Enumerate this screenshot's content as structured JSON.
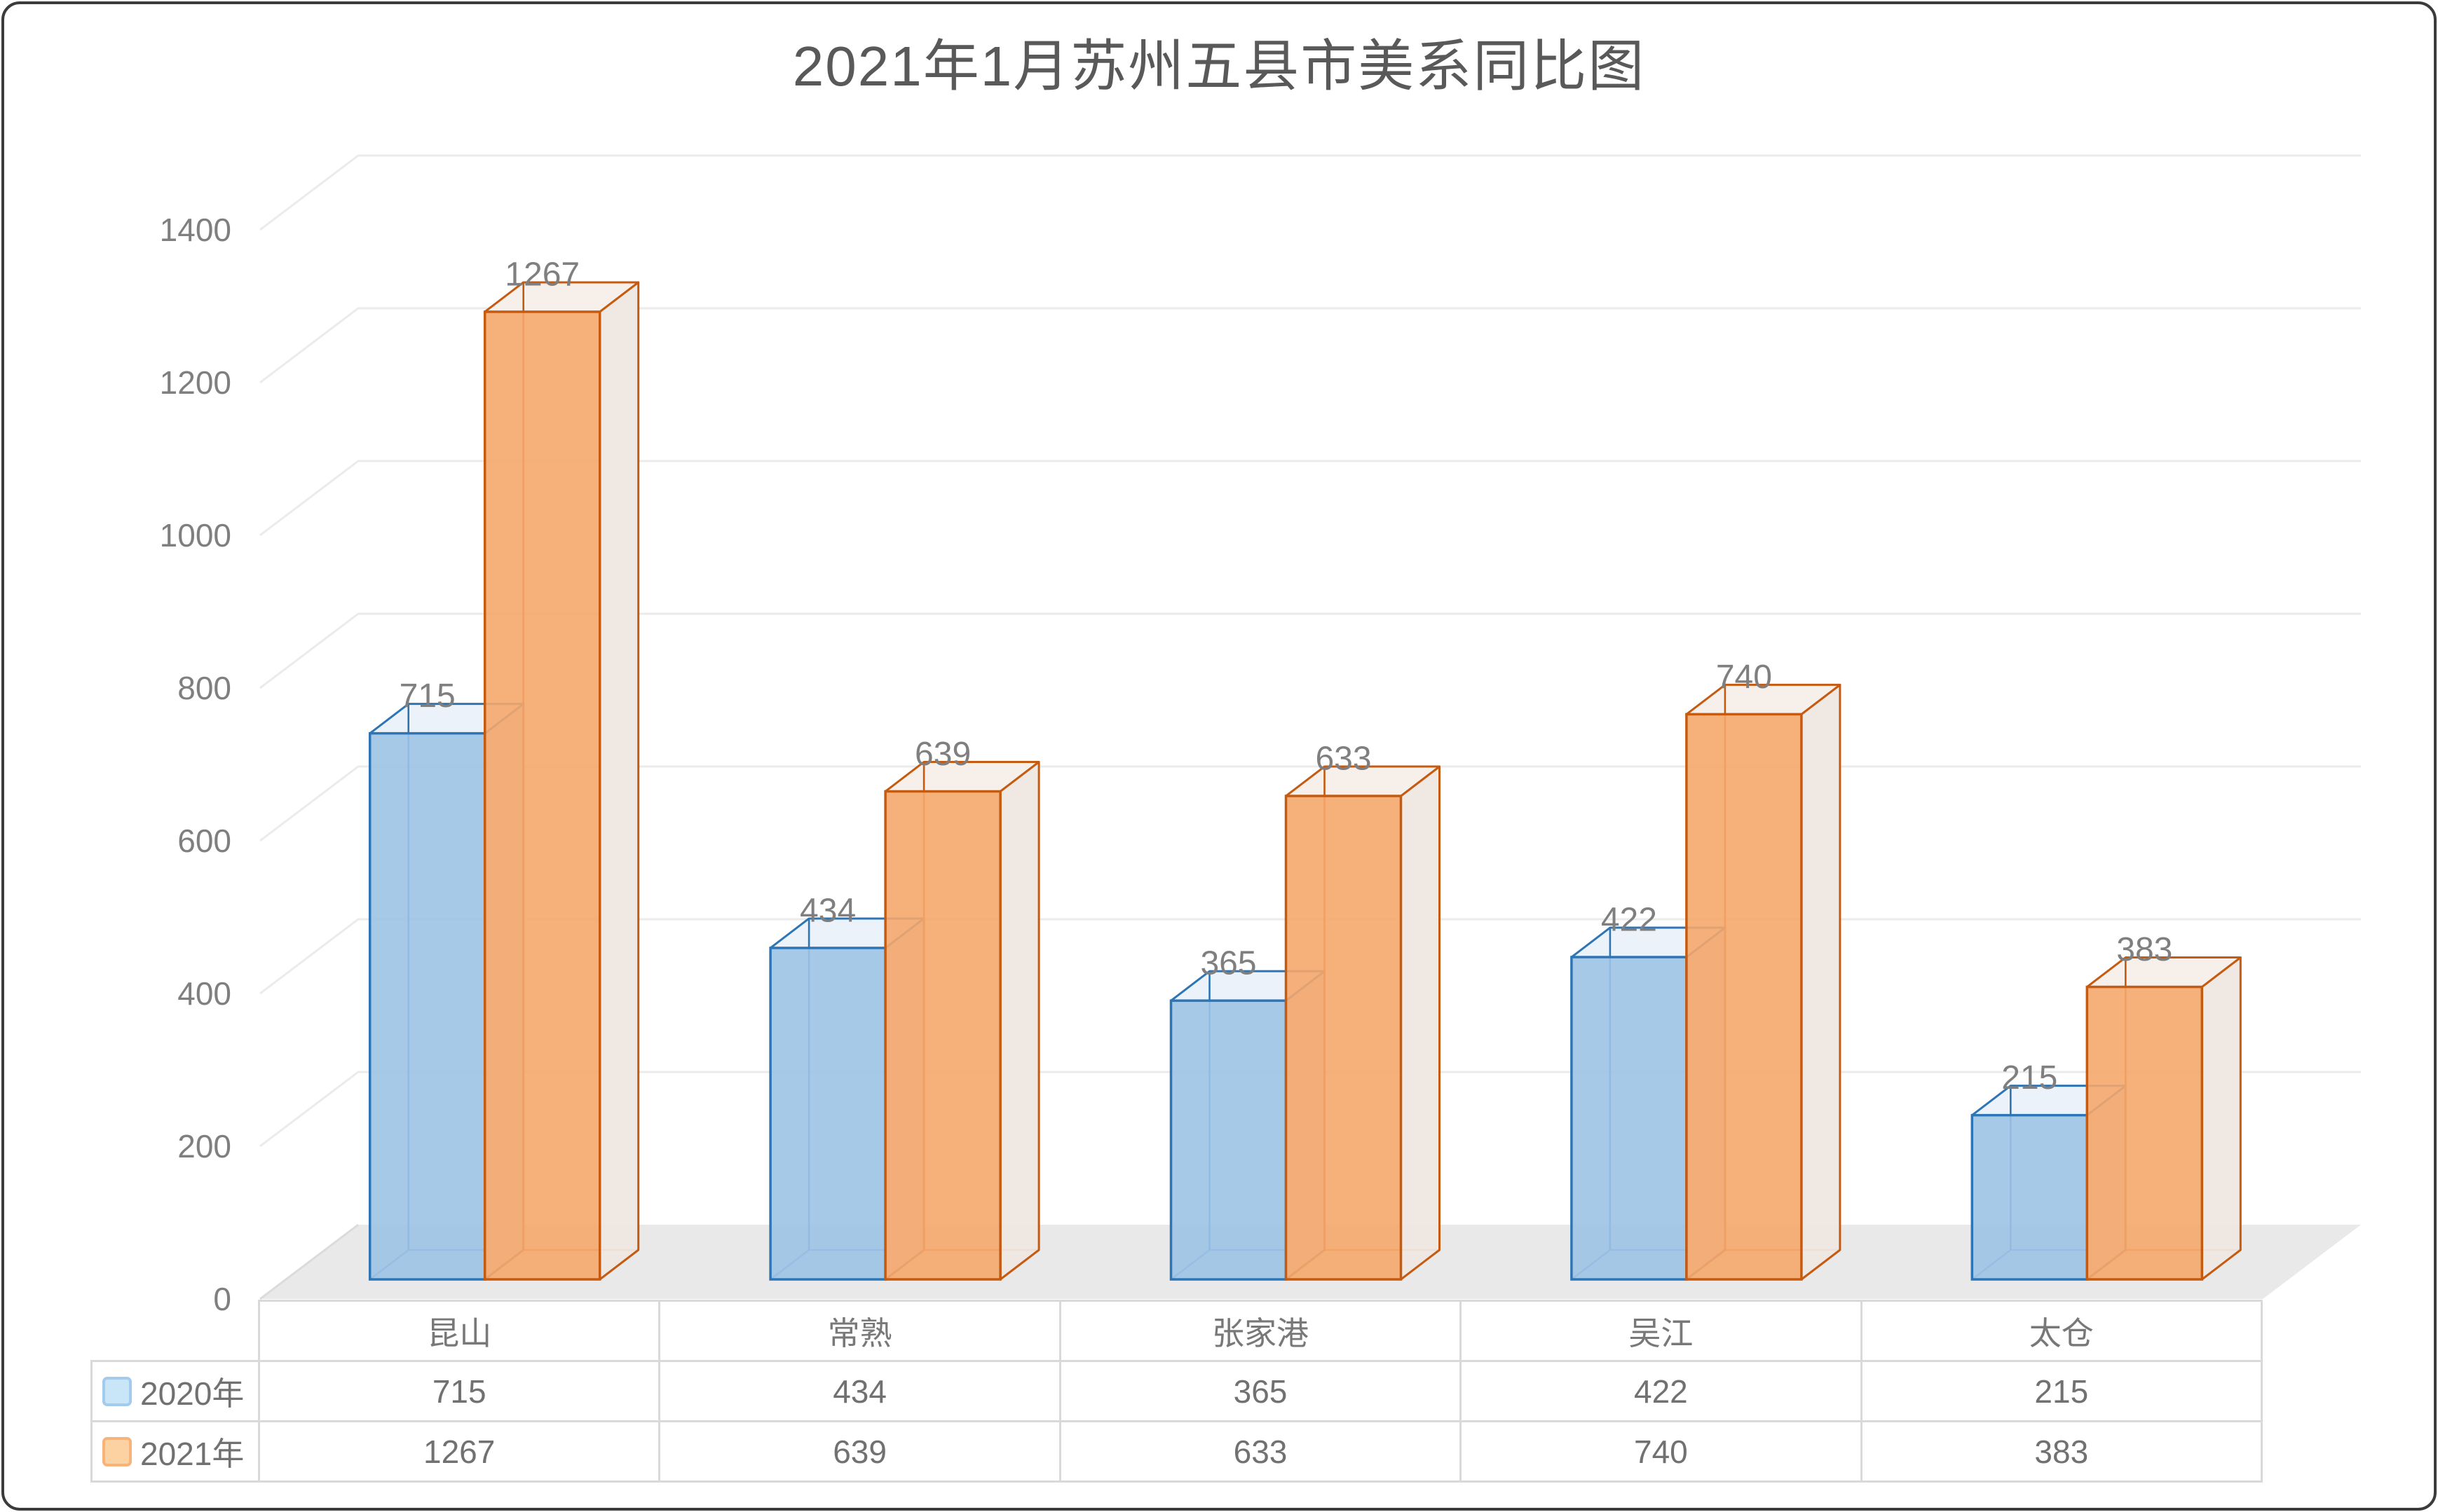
{
  "window": {
    "background": "#FFFFFF",
    "frame_border_color": "#3B3B3B"
  },
  "title": {
    "text": "2021年1月苏州五县市美系同比图",
    "color": "#595959"
  },
  "chart_data": {
    "type": "bar",
    "style": "3d-clustered-column",
    "title": "2021年1月苏州五县市美系同比图",
    "categories": [
      "昆山",
      "常熟",
      "张家港",
      "吴江",
      "太仓"
    ],
    "series": [
      {
        "name": "2020年",
        "values": [
          715,
          434,
          365,
          422,
          215
        ]
      },
      {
        "name": "2021年",
        "values": [
          1267,
          639,
          633,
          740,
          383
        ]
      }
    ],
    "xlabel": "",
    "ylabel": "",
    "ylim": [
      0,
      1400
    ],
    "y_ticks": [
      0,
      200,
      400,
      600,
      800,
      1000,
      1200,
      1400
    ],
    "grid": true,
    "data_labels": true,
    "legend_position": "data-table-left"
  },
  "colors": {
    "series_2020": {
      "front": "#9DC3E6",
      "stroke": "#2E75B6",
      "top": "#ECF2F9",
      "side": "#CEDFF0",
      "swatch_fill": "#C9E5F8",
      "swatch_border": "#A3CBEB"
    },
    "series_2021": {
      "front": "#F5A76C",
      "stroke": "#C55A11",
      "top": "#F6EFEA",
      "side": "#EFE6E0",
      "swatch_fill": "#FCD2A2",
      "swatch_border": "#F7B379"
    },
    "gridline": "#EBEBEB",
    "floor": "#E9E9E9",
    "floor_edge": "#DBDBDB",
    "axis_text": "#7F7F7F",
    "data_label_text": "#7F7F7F",
    "table_border": "#D9D9D9",
    "table_text": "#717171"
  }
}
